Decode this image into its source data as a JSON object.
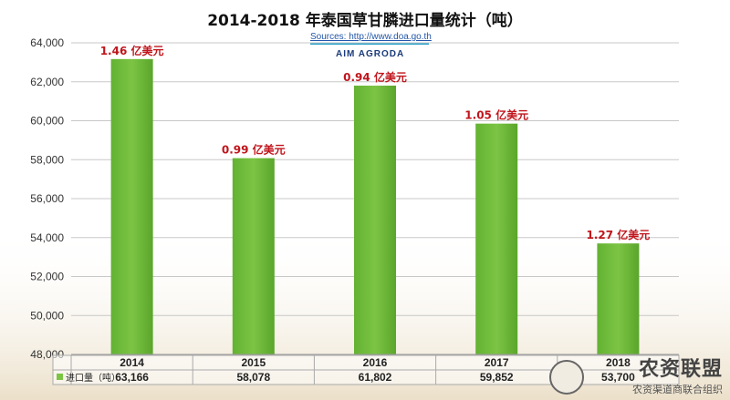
{
  "chart_data": {
    "type": "bar",
    "title": "2014-2018 年泰国草甘膦进口量统计（吨）",
    "source": "Sources: http://www.doa.go.th",
    "brand": "AIM AGRODA",
    "categories": [
      "2014",
      "2015",
      "2016",
      "2017",
      "2018"
    ],
    "values": [
      63166,
      58078,
      61802,
      59852,
      53700
    ],
    "value_labels": [
      "63,166",
      "58,078",
      "61,802",
      "59,852",
      "53,700"
    ],
    "annotations": [
      "1.46 亿美元",
      "0.99 亿美元",
      "0.94 亿美元",
      "1.05 亿美元",
      "1.27 亿美元"
    ],
    "ylim": [
      48000,
      64000
    ],
    "yticks": [
      48000,
      50000,
      52000,
      54000,
      56000,
      58000,
      60000,
      62000,
      64000
    ],
    "ytick_labels": [
      "48,000",
      "50,000",
      "52,000",
      "54,000",
      "56,000",
      "58,000",
      "60,000",
      "62,000",
      "64,000"
    ],
    "legend_label": "进口量（吨）",
    "grid": true,
    "colors": {
      "bar": "#7cc444",
      "annotation": "#c0151c",
      "grid": "#c8c8c8"
    }
  },
  "watermark": {
    "main": "农资联盟",
    "sub": "农资渠道商联合组织"
  }
}
